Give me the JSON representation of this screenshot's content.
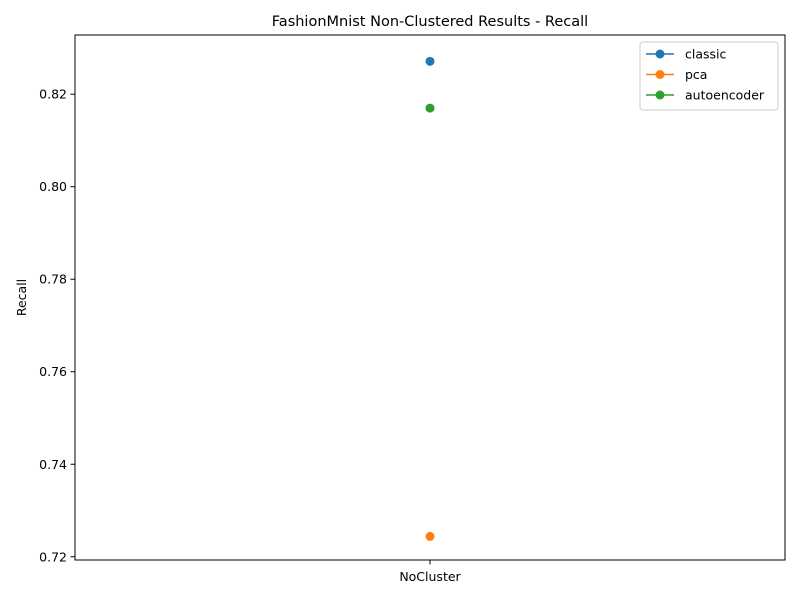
{
  "chart_data": {
    "type": "line",
    "title": "FashionMnist Non-Clustered Results - Recall",
    "xlabel": "",
    "ylabel": "Recall",
    "categories": [
      "NoCluster"
    ],
    "ylim": [
      0.7193,
      0.8328
    ],
    "yticks": [
      "0.72",
      "0.74",
      "0.76",
      "0.78",
      "0.80",
      "0.82"
    ],
    "ytick_values": [
      0.72,
      0.74,
      0.76,
      0.78,
      0.8,
      0.82
    ],
    "grid": false,
    "legend_position": "top-right",
    "series": [
      {
        "name": "classic",
        "color": "#1f77b4",
        "values": [
          0.8271
        ]
      },
      {
        "name": "pca",
        "color": "#ff7f0e",
        "values": [
          0.7244
        ]
      },
      {
        "name": "autoencoder",
        "color": "#2ca02c",
        "values": [
          0.817
        ]
      }
    ]
  }
}
